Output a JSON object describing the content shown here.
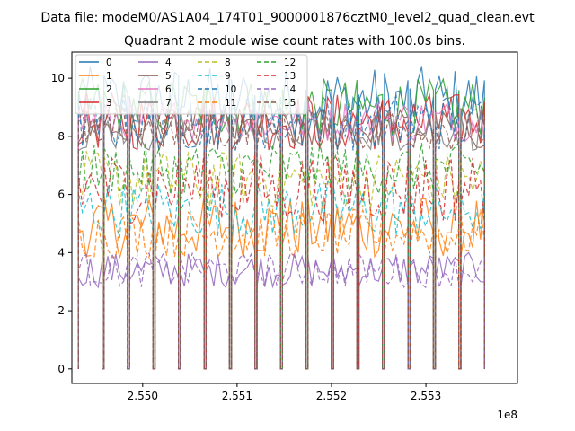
{
  "figure": {
    "suptitle": "Data file: modeM0/AS1A04_174T01_9000001876cztM0_level2_quad_clean.evt",
    "title": "Quadrant 2 module wise count rates with 100.0s bins.",
    "xoffset_label": "1e8"
  },
  "chart_data": {
    "type": "line",
    "title": "Quadrant 2 module wise count rates with 100.0s bins.",
    "xlabel": "",
    "ylabel": "",
    "xlim": [
      2.54925,
      2.55397
    ],
    "ylim": [
      -0.5,
      10.9
    ],
    "x_units_scale": "1e8",
    "x_range_data": [
      2.5493,
      2.5537
    ],
    "xticks": [
      2.55,
      2.551,
      2.552,
      2.553
    ],
    "xtick_labels": [
      "2.550",
      "2.551",
      "2.552",
      "2.553"
    ],
    "yticks": [
      0,
      2,
      4,
      6,
      8,
      10
    ],
    "ytick_labels": [
      "0",
      "2",
      "4",
      "6",
      "8",
      "10"
    ],
    "grid": false,
    "legend_position": "upper-left",
    "legend_columns": 4,
    "series": [
      {
        "name": "0",
        "color": "#1f77b4",
        "dash": "solid",
        "band": [
          8.0,
          10.4
        ]
      },
      {
        "name": "1",
        "color": "#ff7f0e",
        "dash": "solid",
        "band": [
          3.8,
          6.0
        ]
      },
      {
        "name": "2",
        "color": "#2ca02c",
        "dash": "solid",
        "band": [
          8.0,
          10.0
        ]
      },
      {
        "name": "3",
        "color": "#d62728",
        "dash": "solid",
        "band": [
          7.5,
          9.5
        ]
      },
      {
        "name": "4",
        "color": "#9467bd",
        "dash": "solid",
        "band": [
          2.8,
          4.0
        ]
      },
      {
        "name": "5",
        "color": "#8c564b",
        "dash": "solid",
        "band": [
          7.5,
          9.0
        ]
      },
      {
        "name": "6",
        "color": "#e377c2",
        "dash": "solid",
        "band": [
          7.8,
          9.3
        ]
      },
      {
        "name": "7",
        "color": "#7f7f7f",
        "dash": "solid",
        "band": [
          7.5,
          9.0
        ]
      },
      {
        "name": "8",
        "color": "#bcbd22",
        "dash": "dashed",
        "band": [
          5.5,
          7.5
        ]
      },
      {
        "name": "9",
        "color": "#17becf",
        "dash": "dashed",
        "band": [
          4.5,
          6.5
        ]
      },
      {
        "name": "10",
        "color": "#1f77b4",
        "dash": "dashed",
        "band": [
          7.5,
          9.5
        ]
      },
      {
        "name": "11",
        "color": "#ff7f0e",
        "dash": "dashed",
        "band": [
          3.8,
          5.5
        ]
      },
      {
        "name": "12",
        "color": "#2ca02c",
        "dash": "dashed",
        "band": [
          6.0,
          7.8
        ]
      },
      {
        "name": "13",
        "color": "#d62728",
        "dash": "dashed",
        "band": [
          5.0,
          7.5
        ]
      },
      {
        "name": "14",
        "color": "#9467bd",
        "dash": "dashed",
        "band": [
          2.8,
          4.0
        ]
      },
      {
        "name": "15",
        "color": "#8c564b",
        "dash": "dashed",
        "band": [
          7.5,
          9.0
        ]
      }
    ],
    "on_segments": [
      [
        2.54932,
        2.54957
      ],
      [
        2.54959,
        2.54984
      ],
      [
        2.54986,
        2.55011
      ],
      [
        2.55013,
        2.55038
      ],
      [
        2.5504,
        2.55065
      ],
      [
        2.55067,
        2.55092
      ],
      [
        2.55094,
        2.55119
      ],
      [
        2.55121,
        2.55146
      ],
      [
        2.55148,
        2.55173
      ],
      [
        2.55175,
        2.552
      ],
      [
        2.55202,
        2.55227
      ],
      [
        2.55229,
        2.55254
      ],
      [
        2.55256,
        2.55281
      ],
      [
        2.55283,
        2.55308
      ],
      [
        2.5531,
        2.55335
      ],
      [
        2.55337,
        2.55362
      ]
    ]
  }
}
